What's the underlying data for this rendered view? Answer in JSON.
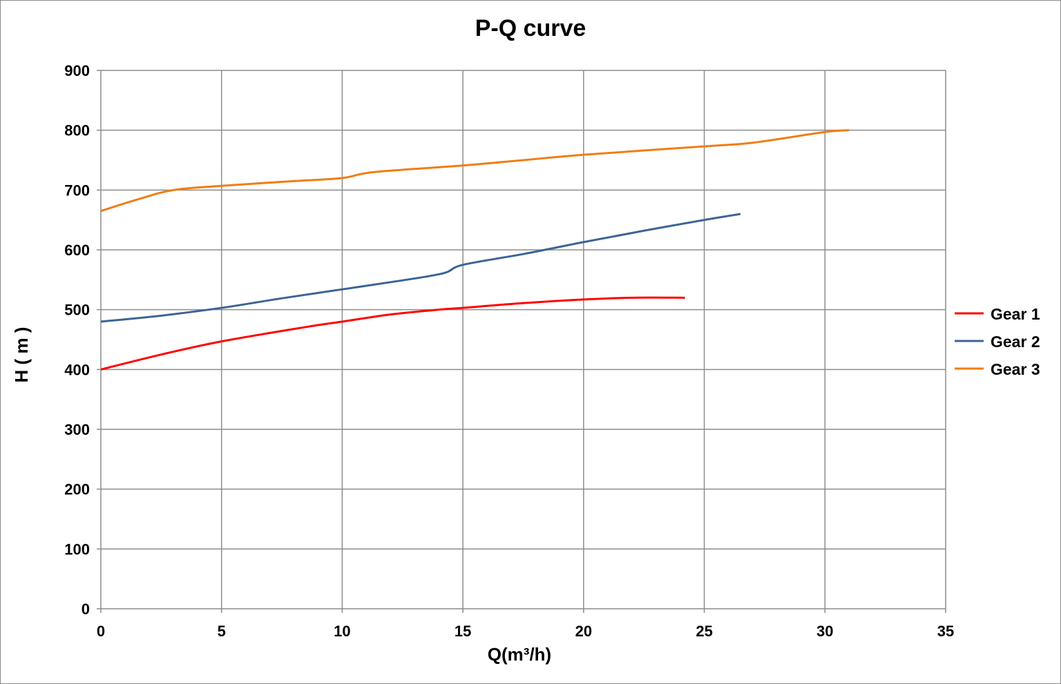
{
  "chart_data": {
    "type": "line",
    "title": "P-Q  curve",
    "xlabel": "Q(m³/h)",
    "ylabel": "H ( m )",
    "xlim": [
      0,
      35
    ],
    "ylim": [
      0,
      900
    ],
    "xticks": [
      0,
      5,
      10,
      15,
      20,
      25,
      30,
      35
    ],
    "yticks": [
      0,
      100,
      200,
      300,
      400,
      500,
      600,
      700,
      800,
      900
    ],
    "grid": true,
    "legend_position": "right",
    "series": [
      {
        "name": "Gear 1",
        "color": "#ff0000",
        "x": [
          0,
          2.5,
          5,
          8.5,
          10,
          12,
          14,
          15,
          17.5,
          20,
          22,
          24.2
        ],
        "y": [
          400,
          425,
          447,
          471,
          480,
          492,
          500,
          503,
          511,
          517,
          520,
          520
        ]
      },
      {
        "name": "Gear 2",
        "color": "#3c6496",
        "x": [
          0,
          2.5,
          5,
          7.5,
          10,
          12.5,
          14.2,
          15,
          17.5,
          20,
          22.5,
          25,
          26.5
        ],
        "y": [
          480,
          490,
          503,
          519,
          534,
          549,
          561,
          575,
          593,
          613,
          632,
          650,
          660
        ]
      },
      {
        "name": "Gear 3",
        "color": "#f07d14",
        "x": [
          0,
          1.5,
          3,
          5,
          8,
          10,
          11.3,
          15,
          17.5,
          20,
          25,
          27,
          30,
          31
        ],
        "y": [
          665,
          684,
          700,
          707,
          715,
          720,
          730,
          741,
          750,
          759,
          773,
          779,
          797,
          800
        ]
      }
    ]
  }
}
